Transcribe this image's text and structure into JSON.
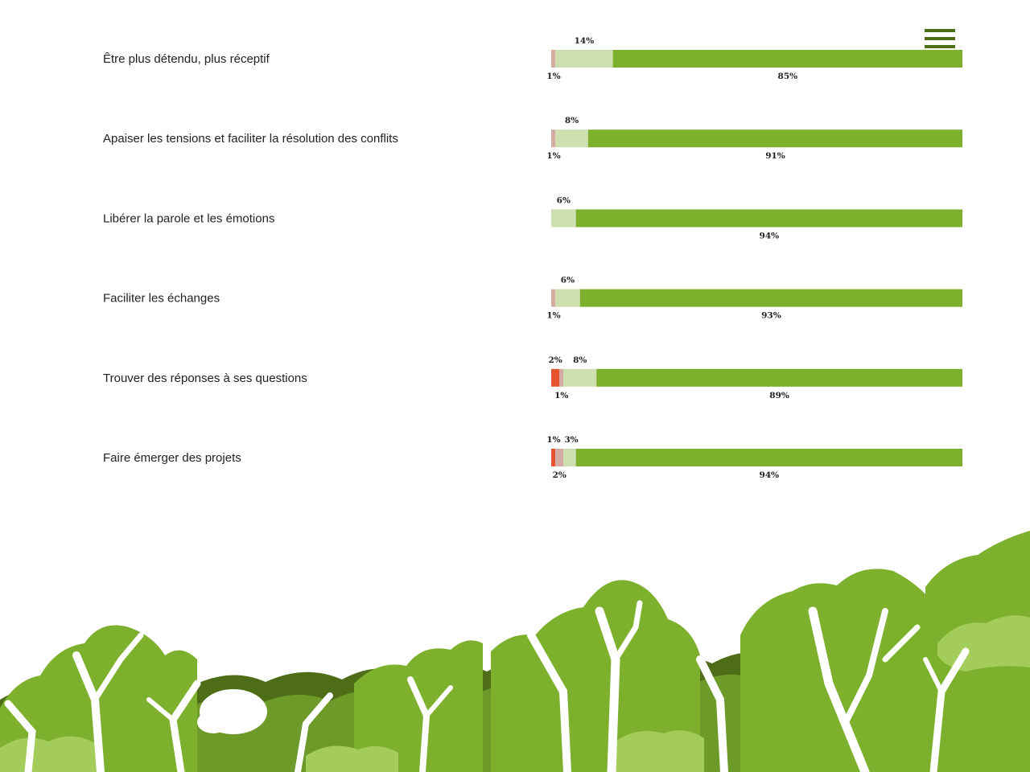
{
  "menu": {
    "icon": "hamburger-menu-icon",
    "color": "#4d6e16"
  },
  "chart_data": {
    "type": "bar",
    "orientation": "horizontal",
    "stacked": true,
    "title": "",
    "xlabel": "",
    "ylabel": "",
    "xlim": [
      0,
      100
    ],
    "grid": false,
    "legend": "none",
    "categories": [
      "Être plus détendu, plus réceptif",
      "Apaiser les tensions et faciliter la résolution des conflits",
      "Libérer la parole et les émotions",
      "Faciliter les échanges",
      "Trouver des réponses à ses questions",
      "Faire émerger des projets"
    ],
    "series": [
      {
        "color": "#e8532f",
        "values": [
          0,
          0,
          0,
          0,
          2,
          1
        ]
      },
      {
        "color": "#d4aba0",
        "values": [
          1,
          1,
          0,
          1,
          1,
          2
        ]
      },
      {
        "color": "#cddfae",
        "values": [
          14,
          8,
          6,
          6,
          8,
          3
        ]
      },
      {
        "color": "#7db12d",
        "values": [
          85,
          91,
          94,
          93,
          89,
          94
        ]
      }
    ],
    "data_labels": [
      [
        {
          "text": "14%",
          "segment": 2,
          "position": "above"
        },
        {
          "text": "1%",
          "segment": 1,
          "position": "below"
        },
        {
          "text": "85%",
          "segment": 3,
          "position": "below"
        }
      ],
      [
        {
          "text": "8%",
          "segment": 2,
          "position": "above"
        },
        {
          "text": "1%",
          "segment": 1,
          "position": "below"
        },
        {
          "text": "91%",
          "segment": 3,
          "position": "below"
        }
      ],
      [
        {
          "text": "6%",
          "segment": 2,
          "position": "above"
        },
        {
          "text": "94%",
          "segment": 3,
          "position": "below"
        }
      ],
      [
        {
          "text": "6%",
          "segment": 2,
          "position": "above"
        },
        {
          "text": "1%",
          "segment": 1,
          "position": "below"
        },
        {
          "text": "93%",
          "segment": 3,
          "position": "below"
        }
      ],
      [
        {
          "text": "2%",
          "segment": 0,
          "position": "above"
        },
        {
          "text": "8%",
          "segment": 2,
          "position": "above"
        },
        {
          "text": "1%",
          "segment": 1,
          "position": "below"
        },
        {
          "text": "89%",
          "segment": 3,
          "position": "below"
        }
      ],
      [
        {
          "text": "1%",
          "segment": 0,
          "position": "above"
        },
        {
          "text": "3%",
          "segment": 2,
          "position": "above"
        },
        {
          "text": "2%",
          "segment": 1,
          "position": "below"
        },
        {
          "text": "94%",
          "segment": 3,
          "position": "below"
        }
      ]
    ]
  },
  "decoration": {
    "name": "forest-illustration",
    "colors": [
      "#4d6e16",
      "#6e9a2a",
      "#7db12d",
      "#a3cc5a",
      "#ffffff"
    ]
  }
}
